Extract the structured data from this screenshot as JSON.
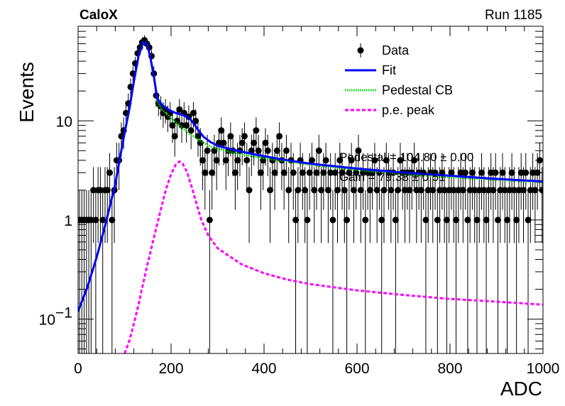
{
  "header": {
    "experiment": "CaloX",
    "run": "Run 1185"
  },
  "chart_data": {
    "type": "scatter",
    "xlabel": "ADC",
    "ylabel": "Events",
    "xlim": [
      0,
      1000
    ],
    "ylim": [
      0.045,
      90
    ],
    "yscale": "log",
    "xticks": [
      "0",
      "200",
      "400",
      "600",
      "800",
      "1000"
    ],
    "yticks": [
      {
        "value": 0.1,
        "label": "10",
        "exp": "−1"
      },
      {
        "value": 1,
        "label": "1",
        "exp": ""
      },
      {
        "value": 10,
        "label": "10",
        "exp": ""
      }
    ],
    "legend_position": "top-right",
    "legend": [
      {
        "label": "Data",
        "style": "marker",
        "color": "#000000"
      },
      {
        "label": "Fit",
        "style": "solid",
        "color": "#0000ff"
      },
      {
        "label": "Pedestal CB",
        "style": "dotted",
        "color": "#00cc00"
      },
      {
        "label": "p.e. peak",
        "style": "dashed",
        "color": "#ff00ff"
      }
    ],
    "fit_text": [
      "Pedestal = 104.80 ± 0.00",
      "Gain = 79.38 ± 0.51"
    ],
    "data_points": [
      [
        3,
        1
      ],
      [
        8,
        1
      ],
      [
        13,
        1
      ],
      [
        18,
        1
      ],
      [
        23,
        1
      ],
      [
        28,
        1
      ],
      [
        33,
        2
      ],
      [
        38,
        1
      ],
      [
        43,
        2
      ],
      [
        48,
        2
      ],
      [
        53,
        1
      ],
      [
        58,
        2
      ],
      [
        63,
        2
      ],
      [
        68,
        3
      ],
      [
        73,
        1
      ],
      [
        78,
        2
      ],
      [
        83,
        4
      ],
      [
        88,
        4
      ],
      [
        93,
        7
      ],
      [
        98,
        8
      ],
      [
        103,
        12
      ],
      [
        108,
        15
      ],
      [
        113,
        22
      ],
      [
        118,
        30
      ],
      [
        123,
        38
      ],
      [
        128,
        48
      ],
      [
        133,
        55
      ],
      [
        138,
        62
      ],
      [
        143,
        65
      ],
      [
        148,
        60
      ],
      [
        153,
        55
      ],
      [
        158,
        45
      ],
      [
        163,
        30
      ],
      [
        168,
        18
      ],
      [
        173,
        15
      ],
      [
        178,
        14
      ],
      [
        183,
        12
      ],
      [
        188,
        13
      ],
      [
        193,
        11
      ],
      [
        198,
        12
      ],
      [
        203,
        9
      ],
      [
        208,
        7
      ],
      [
        213,
        10
      ],
      [
        218,
        13
      ],
      [
        223,
        9
      ],
      [
        228,
        12
      ],
      [
        233,
        9
      ],
      [
        238,
        11
      ],
      [
        243,
        8
      ],
      [
        248,
        12
      ],
      [
        253,
        10
      ],
      [
        258,
        7
      ],
      [
        263,
        6
      ],
      [
        268,
        4
      ],
      [
        273,
        3
      ],
      [
        278,
        5
      ],
      [
        283,
        1
      ],
      [
        288,
        3
      ],
      [
        293,
        5
      ],
      [
        298,
        4
      ],
      [
        303,
        6
      ],
      [
        308,
        8
      ],
      [
        313,
        6
      ],
      [
        318,
        4
      ],
      [
        323,
        5
      ],
      [
        328,
        7
      ],
      [
        333,
        5
      ],
      [
        338,
        3
      ],
      [
        343,
        4
      ],
      [
        348,
        5
      ],
      [
        353,
        6
      ],
      [
        358,
        7
      ],
      [
        363,
        4
      ],
      [
        368,
        2
      ],
      [
        373,
        5
      ],
      [
        378,
        6
      ],
      [
        383,
        8
      ],
      [
        388,
        5
      ],
      [
        393,
        3
      ],
      [
        398,
        4
      ],
      [
        403,
        6
      ],
      [
        408,
        5
      ],
      [
        413,
        2
      ],
      [
        418,
        4
      ],
      [
        423,
        3
      ],
      [
        428,
        5
      ],
      [
        433,
        7
      ],
      [
        438,
        4
      ],
      [
        443,
        3
      ],
      [
        448,
        5
      ],
      [
        453,
        2
      ],
      [
        458,
        4
      ],
      [
        463,
        3
      ],
      [
        468,
        1
      ],
      [
        473,
        2
      ],
      [
        478,
        4
      ],
      [
        483,
        3
      ],
      [
        488,
        2
      ],
      [
        493,
        1
      ],
      [
        498,
        3
      ],
      [
        503,
        4
      ],
      [
        508,
        2
      ],
      [
        513,
        3
      ],
      [
        518,
        5
      ],
      [
        523,
        2
      ],
      [
        528,
        3
      ],
      [
        533,
        4
      ],
      [
        538,
        2
      ],
      [
        543,
        3
      ],
      [
        548,
        1
      ],
      [
        553,
        3
      ],
      [
        558,
        2
      ],
      [
        563,
        4
      ],
      [
        568,
        3
      ],
      [
        573,
        2
      ],
      [
        578,
        1
      ],
      [
        583,
        3
      ],
      [
        588,
        4
      ],
      [
        593,
        2
      ],
      [
        598,
        3
      ],
      [
        603,
        5
      ],
      [
        608,
        2
      ],
      [
        613,
        3
      ],
      [
        618,
        1
      ],
      [
        623,
        3
      ],
      [
        628,
        2
      ],
      [
        633,
        3
      ],
      [
        638,
        4
      ],
      [
        643,
        2
      ],
      [
        648,
        3
      ],
      [
        653,
        1
      ],
      [
        658,
        2
      ],
      [
        663,
        4
      ],
      [
        668,
        3
      ],
      [
        673,
        2
      ],
      [
        678,
        3
      ],
      [
        683,
        1
      ],
      [
        688,
        2
      ],
      [
        693,
        4
      ],
      [
        698,
        3
      ],
      [
        703,
        2
      ],
      [
        708,
        3
      ],
      [
        713,
        2
      ],
      [
        718,
        3
      ],
      [
        723,
        4
      ],
      [
        728,
        2
      ],
      [
        733,
        3
      ],
      [
        738,
        2
      ],
      [
        743,
        3
      ],
      [
        748,
        1
      ],
      [
        753,
        2
      ],
      [
        758,
        3
      ],
      [
        763,
        2
      ],
      [
        768,
        3
      ],
      [
        773,
        1
      ],
      [
        778,
        2
      ],
      [
        783,
        3
      ],
      [
        788,
        2
      ],
      [
        793,
        1
      ],
      [
        798,
        2
      ],
      [
        803,
        3
      ],
      [
        808,
        2
      ],
      [
        813,
        1
      ],
      [
        818,
        2
      ],
      [
        823,
        3
      ],
      [
        828,
        2
      ],
      [
        833,
        3
      ],
      [
        838,
        1
      ],
      [
        843,
        2
      ],
      [
        848,
        3
      ],
      [
        853,
        2
      ],
      [
        858,
        1
      ],
      [
        863,
        2
      ],
      [
        868,
        3
      ],
      [
        873,
        2
      ],
      [
        878,
        1
      ],
      [
        883,
        2
      ],
      [
        888,
        3
      ],
      [
        893,
        2
      ],
      [
        898,
        3
      ],
      [
        903,
        1
      ],
      [
        908,
        2
      ],
      [
        913,
        3
      ],
      [
        918,
        2
      ],
      [
        923,
        1
      ],
      [
        928,
        2
      ],
      [
        933,
        3
      ],
      [
        938,
        2
      ],
      [
        943,
        1
      ],
      [
        948,
        2
      ],
      [
        953,
        3
      ],
      [
        958,
        2
      ],
      [
        963,
        3
      ],
      [
        968,
        1
      ],
      [
        973,
        2
      ],
      [
        978,
        3
      ],
      [
        983,
        2
      ],
      [
        988,
        3
      ],
      [
        993,
        4
      ],
      [
        998,
        2
      ]
    ],
    "fit_curve": [
      [
        0,
        0.12
      ],
      [
        20,
        0.21
      ],
      [
        40,
        0.42
      ],
      [
        60,
        0.95
      ],
      [
        80,
        2.3
      ],
      [
        90,
        4.2
      ],
      [
        100,
        7.5
      ],
      [
        110,
        13
      ],
      [
        120,
        25
      ],
      [
        130,
        45
      ],
      [
        140,
        62
      ],
      [
        148,
        60
      ],
      [
        155,
        45
      ],
      [
        163,
        28
      ],
      [
        170,
        17
      ],
      [
        180,
        14.5
      ],
      [
        195,
        12.9
      ],
      [
        210,
        12.0
      ],
      [
        225,
        11.5
      ],
      [
        240,
        10.6
      ],
      [
        250,
        9.2
      ],
      [
        260,
        7.9
      ],
      [
        270,
        6.9
      ],
      [
        285,
        6.1
      ],
      [
        300,
        5.6
      ],
      [
        350,
        4.9
      ],
      [
        400,
        4.4
      ],
      [
        450,
        4.0
      ],
      [
        500,
        3.7
      ],
      [
        600,
        3.3
      ],
      [
        700,
        3.0
      ],
      [
        800,
        2.8
      ],
      [
        900,
        2.6
      ],
      [
        1000,
        2.45
      ]
    ],
    "pedestal_curve": [
      [
        0,
        0.12
      ],
      [
        20,
        0.21
      ],
      [
        40,
        0.42
      ],
      [
        60,
        0.95
      ],
      [
        80,
        2.3
      ],
      [
        90,
        4.2
      ],
      [
        100,
        7.5
      ],
      [
        110,
        13
      ],
      [
        120,
        25
      ],
      [
        130,
        45
      ],
      [
        140,
        62
      ],
      [
        148,
        60
      ],
      [
        155,
        45
      ],
      [
        163,
        28
      ],
      [
        170,
        16
      ],
      [
        180,
        13
      ],
      [
        195,
        11.3
      ],
      [
        210,
        9.7
      ],
      [
        225,
        8.4
      ],
      [
        240,
        7.4
      ],
      [
        250,
        6.9
      ],
      [
        260,
        6.4
      ],
      [
        270,
        6.0
      ],
      [
        285,
        5.5
      ],
      [
        300,
        5.2
      ],
      [
        350,
        4.6
      ],
      [
        400,
        4.2
      ],
      [
        450,
        3.9
      ],
      [
        500,
        3.6
      ],
      [
        600,
        3.2
      ],
      [
        700,
        2.9
      ],
      [
        800,
        2.7
      ],
      [
        900,
        2.55
      ],
      [
        1000,
        2.4
      ]
    ],
    "pe_curve": [
      [
        100,
        0.045
      ],
      [
        110,
        0.06
      ],
      [
        120,
        0.09
      ],
      [
        130,
        0.14
      ],
      [
        140,
        0.23
      ],
      [
        150,
        0.37
      ],
      [
        160,
        0.58
      ],
      [
        170,
        0.9
      ],
      [
        180,
        1.4
      ],
      [
        190,
        2.1
      ],
      [
        200,
        2.9
      ],
      [
        210,
        3.6
      ],
      [
        218,
        3.9
      ],
      [
        225,
        3.7
      ],
      [
        235,
        3.0
      ],
      [
        245,
        2.1
      ],
      [
        255,
        1.45
      ],
      [
        265,
        1.0
      ],
      [
        280,
        0.7
      ],
      [
        300,
        0.52
      ],
      [
        350,
        0.36
      ],
      [
        400,
        0.29
      ],
      [
        450,
        0.25
      ],
      [
        500,
        0.225
      ],
      [
        600,
        0.195
      ],
      [
        700,
        0.175
      ],
      [
        800,
        0.16
      ],
      [
        900,
        0.15
      ],
      [
        1000,
        0.14
      ]
    ]
  }
}
